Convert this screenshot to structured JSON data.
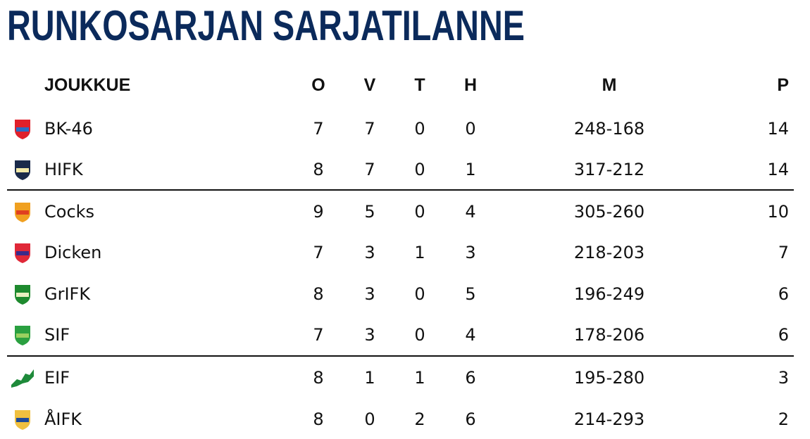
{
  "title": "RUNKOSARJAN SARJATILANNE",
  "headers": {
    "team": "JOUKKUE",
    "o": "O",
    "v": "V",
    "t": "T",
    "h": "H",
    "m": "M",
    "p": "P"
  },
  "rows": [
    {
      "team": "BK-46",
      "o": "7",
      "v": "7",
      "t": "0",
      "h": "0",
      "m": "248-168",
      "p": "14",
      "logo": "bk46-logo",
      "logo_colors": [
        "#e0202a",
        "#2a6cc4"
      ]
    },
    {
      "team": "HIFK",
      "o": "8",
      "v": "7",
      "t": "0",
      "h": "1",
      "m": "317-212",
      "p": "14",
      "logo": "hifk-logo",
      "logo_colors": [
        "#1a2a4a",
        "#f2e9a8"
      ]
    },
    {
      "team": "Cocks",
      "o": "9",
      "v": "5",
      "t": "0",
      "h": "4",
      "m": "305-260",
      "p": "10",
      "logo": "cocks-logo",
      "logo_colors": [
        "#f0a020",
        "#e04020"
      ]
    },
    {
      "team": "Dicken",
      "o": "7",
      "v": "3",
      "t": "1",
      "h": "3",
      "m": "218-203",
      "p": "7",
      "logo": "dicken-logo",
      "logo_colors": [
        "#e02838",
        "#3a2a8a"
      ]
    },
    {
      "team": "GrIFK",
      "o": "8",
      "v": "3",
      "t": "0",
      "h": "5",
      "m": "196-249",
      "p": "6",
      "logo": "grifk-logo",
      "logo_colors": [
        "#1e8a2e",
        "#e8f0c0"
      ]
    },
    {
      "team": "SIF",
      "o": "7",
      "v": "3",
      "t": "0",
      "h": "4",
      "m": "178-206",
      "p": "6",
      "logo": "sif-logo",
      "logo_colors": [
        "#2aa040",
        "#9ad060"
      ]
    },
    {
      "team": "EIF",
      "o": "8",
      "v": "1",
      "t": "1",
      "h": "6",
      "m": "195-280",
      "p": "3",
      "logo": "eif-logo",
      "logo_colors": [
        "#1e8a3a",
        "#ffffff"
      ]
    },
    {
      "team": "ÅIFK",
      "o": "8",
      "v": "0",
      "t": "2",
      "h": "6",
      "m": "214-293",
      "p": "2",
      "logo": "aifk-logo",
      "logo_colors": [
        "#f0c040",
        "#1e4a9a"
      ]
    }
  ],
  "dividers_after_rows": [
    2,
    6
  ]
}
